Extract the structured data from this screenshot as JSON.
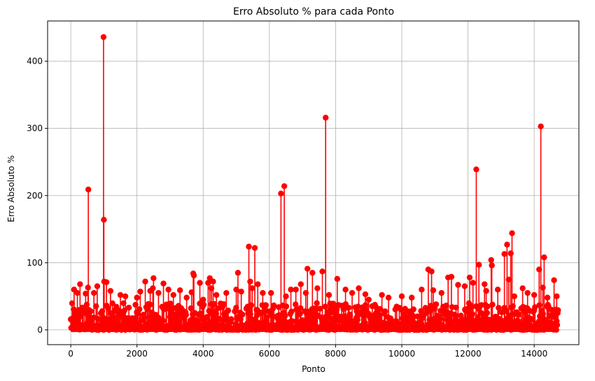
{
  "chart_data": {
    "type": "scatter",
    "style": "stem",
    "title": "Erro Absoluto % para cada Ponto",
    "xlabel": "Ponto",
    "ylabel": "Erro Absoluto %",
    "xlim": [
      -700,
      15350
    ],
    "ylim": [
      -22,
      460
    ],
    "xticks": [
      0,
      2000,
      4000,
      6000,
      8000,
      10000,
      12000,
      14000
    ],
    "yticks": [
      0,
      100,
      200,
      300,
      400
    ],
    "grid": true,
    "color": "#ff0000",
    "spikes": [
      {
        "x": 100,
        "y": 60
      },
      {
        "x": 200,
        "y": 55
      },
      {
        "x": 280,
        "y": 68
      },
      {
        "x": 450,
        "y": 54
      },
      {
        "x": 520,
        "y": 63
      },
      {
        "x": 530,
        "y": 209
      },
      {
        "x": 700,
        "y": 55
      },
      {
        "x": 800,
        "y": 65
      },
      {
        "x": 990,
        "y": 436
      },
      {
        "x": 1000,
        "y": 164
      },
      {
        "x": 1010,
        "y": 72
      },
      {
        "x": 1080,
        "y": 71
      },
      {
        "x": 1200,
        "y": 58
      },
      {
        "x": 1500,
        "y": 52
      },
      {
        "x": 1650,
        "y": 50
      },
      {
        "x": 2000,
        "y": 48
      },
      {
        "x": 2100,
        "y": 57
      },
      {
        "x": 2250,
        "y": 72
      },
      {
        "x": 2400,
        "y": 58
      },
      {
        "x": 2480,
        "y": 62
      },
      {
        "x": 2500,
        "y": 77
      },
      {
        "x": 2650,
        "y": 55
      },
      {
        "x": 2800,
        "y": 69
      },
      {
        "x": 2950,
        "y": 60
      },
      {
        "x": 3100,
        "y": 52
      },
      {
        "x": 3300,
        "y": 59
      },
      {
        "x": 3500,
        "y": 48
      },
      {
        "x": 3650,
        "y": 56
      },
      {
        "x": 3700,
        "y": 84
      },
      {
        "x": 3720,
        "y": 81
      },
      {
        "x": 3900,
        "y": 70
      },
      {
        "x": 4000,
        "y": 45
      },
      {
        "x": 4150,
        "y": 70
      },
      {
        "x": 4200,
        "y": 77
      },
      {
        "x": 4250,
        "y": 62
      },
      {
        "x": 4300,
        "y": 72
      },
      {
        "x": 4400,
        "y": 52
      },
      {
        "x": 4700,
        "y": 55
      },
      {
        "x": 5000,
        "y": 60
      },
      {
        "x": 5050,
        "y": 85
      },
      {
        "x": 5150,
        "y": 57
      },
      {
        "x": 5380,
        "y": 124
      },
      {
        "x": 5420,
        "y": 72
      },
      {
        "x": 5480,
        "y": 62
      },
      {
        "x": 5560,
        "y": 122
      },
      {
        "x": 5650,
        "y": 68
      },
      {
        "x": 5800,
        "y": 55
      },
      {
        "x": 6050,
        "y": 55
      },
      {
        "x": 6350,
        "y": 203
      },
      {
        "x": 6450,
        "y": 214
      },
      {
        "x": 6500,
        "y": 50
      },
      {
        "x": 6650,
        "y": 60
      },
      {
        "x": 6800,
        "y": 60
      },
      {
        "x": 6950,
        "y": 68
      },
      {
        "x": 7100,
        "y": 55
      },
      {
        "x": 7150,
        "y": 91
      },
      {
        "x": 7300,
        "y": 85
      },
      {
        "x": 7450,
        "y": 62
      },
      {
        "x": 7600,
        "y": 87
      },
      {
        "x": 7700,
        "y": 316
      },
      {
        "x": 7800,
        "y": 52
      },
      {
        "x": 8050,
        "y": 76
      },
      {
        "x": 8300,
        "y": 60
      },
      {
        "x": 8500,
        "y": 55
      },
      {
        "x": 8700,
        "y": 62
      },
      {
        "x": 8900,
        "y": 53
      },
      {
        "x": 9000,
        "y": 45
      },
      {
        "x": 9400,
        "y": 52
      },
      {
        "x": 9600,
        "y": 48
      },
      {
        "x": 10000,
        "y": 50
      },
      {
        "x": 10300,
        "y": 48
      },
      {
        "x": 10600,
        "y": 60
      },
      {
        "x": 10800,
        "y": 90
      },
      {
        "x": 10900,
        "y": 87
      },
      {
        "x": 10950,
        "y": 59
      },
      {
        "x": 11200,
        "y": 55
      },
      {
        "x": 11400,
        "y": 78
      },
      {
        "x": 11500,
        "y": 79
      },
      {
        "x": 11700,
        "y": 67
      },
      {
        "x": 11900,
        "y": 65
      },
      {
        "x": 12050,
        "y": 78
      },
      {
        "x": 12150,
        "y": 70
      },
      {
        "x": 12250,
        "y": 239
      },
      {
        "x": 12330,
        "y": 97
      },
      {
        "x": 12500,
        "y": 68
      },
      {
        "x": 12550,
        "y": 58
      },
      {
        "x": 12700,
        "y": 104
      },
      {
        "x": 12720,
        "y": 96
      },
      {
        "x": 12900,
        "y": 60
      },
      {
        "x": 13100,
        "y": 113
      },
      {
        "x": 13180,
        "y": 127
      },
      {
        "x": 13230,
        "y": 75
      },
      {
        "x": 13290,
        "y": 114
      },
      {
        "x": 13330,
        "y": 144
      },
      {
        "x": 13400,
        "y": 50
      },
      {
        "x": 13650,
        "y": 62
      },
      {
        "x": 13800,
        "y": 55
      },
      {
        "x": 14000,
        "y": 52
      },
      {
        "x": 14150,
        "y": 90
      },
      {
        "x": 14200,
        "y": 303
      },
      {
        "x": 14260,
        "y": 63
      },
      {
        "x": 14300,
        "y": 108
      },
      {
        "x": 14400,
        "y": 48
      },
      {
        "x": 14600,
        "y": 74
      },
      {
        "x": 14680,
        "y": 50
      }
    ],
    "noise": {
      "x_min": 0,
      "x_max": 14720,
      "count": 1100,
      "typical_max": 40
    }
  }
}
